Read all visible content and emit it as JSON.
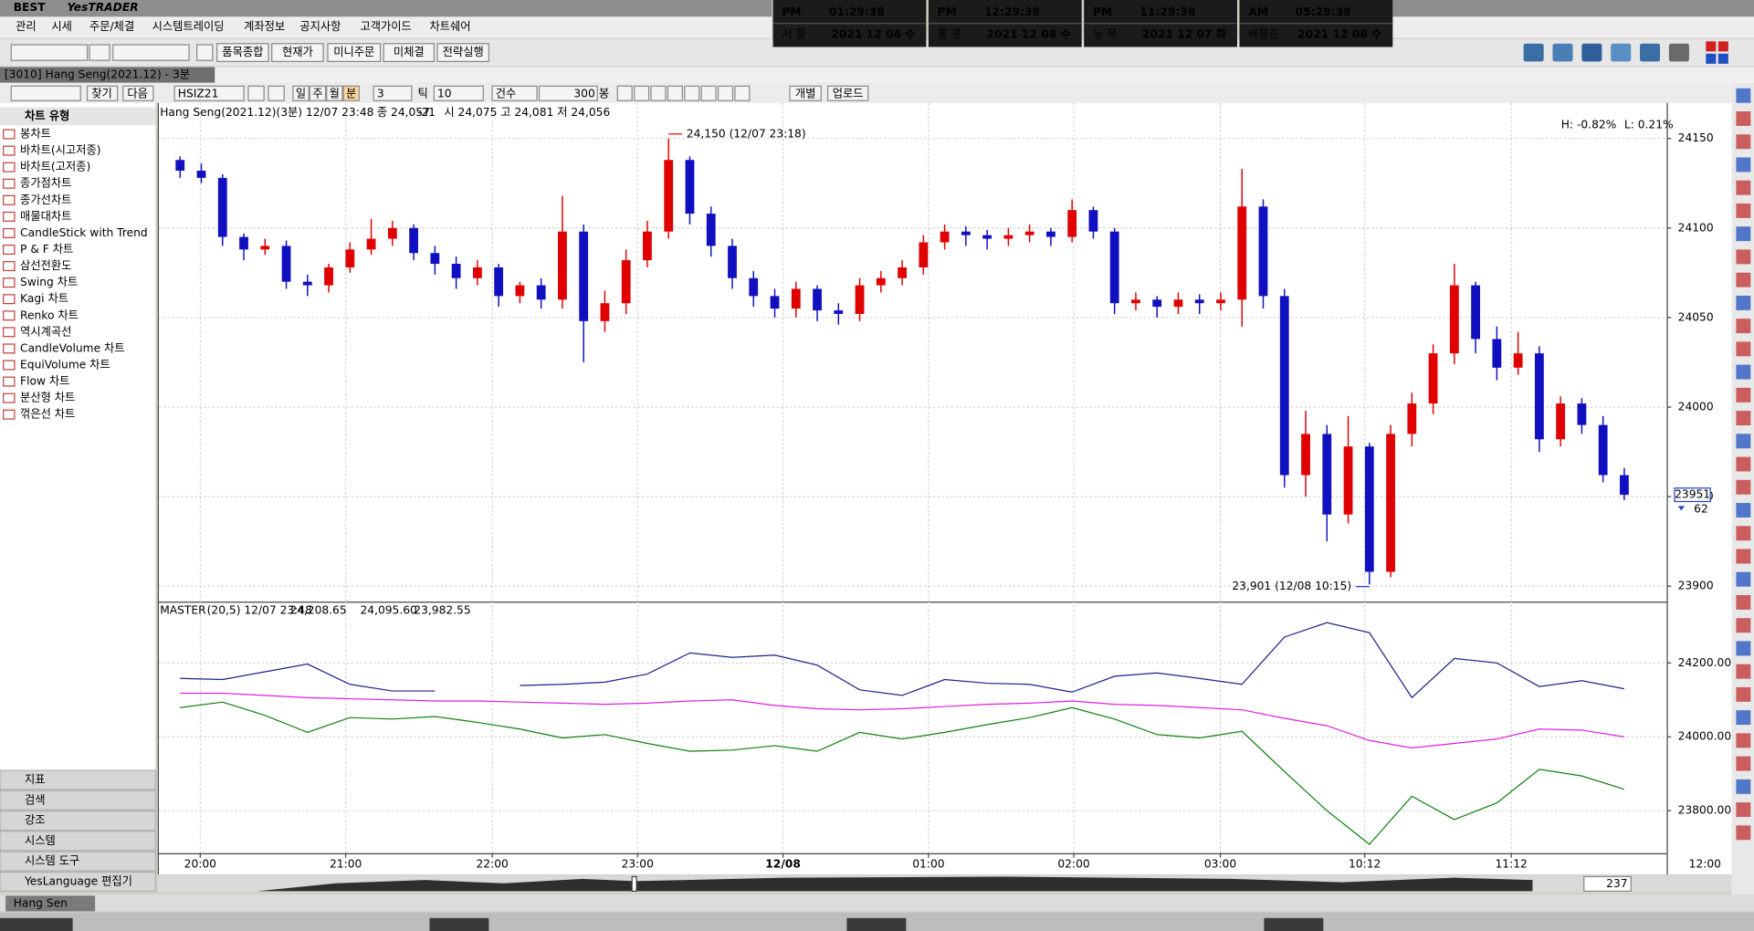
{
  "app": {
    "logo": "BEST",
    "brand": "YesTRADER"
  },
  "menu": [
    "관리",
    "시세",
    "주문/체결",
    "시스템트레이딩",
    "계좌정보",
    "공지사항",
    "고객가이드",
    "차트쉐어"
  ],
  "clocks": [
    {
      "ampm": "PM",
      "time": "01:29:38",
      "city": "서 울",
      "date": "2021 12 08 수"
    },
    {
      "ampm": "PM",
      "time": "12:29:38",
      "city": "홍 콩",
      "date": "2021 12 08 수"
    },
    {
      "ampm": "PM",
      "time": "11:29:38",
      "city": "뉴 욕",
      "date": "2021 12 07 화"
    },
    {
      "ampm": "AM",
      "time": "05:29:38",
      "city": "베를린",
      "date": "2021 12 08 수"
    }
  ],
  "toolbar": {
    "buttons": [
      "품목종합",
      "현재가",
      "미니주문",
      "미체결",
      "전략실행"
    ]
  },
  "window": {
    "title": "[3010] Hang Seng(2021.12) - 3분"
  },
  "chart_toolbar": {
    "find": "찾기",
    "next": "다음",
    "symbol": "HSIZ21",
    "periods": [
      "일",
      "주",
      "월",
      "분"
    ],
    "interval": "3",
    "tick": "틱",
    "tick_count": "10",
    "count_label": "건수",
    "count": "300",
    "count_unit": "봉",
    "fixed": "개별",
    "upload": "업로드"
  },
  "sidebar": {
    "header": "차트 유형",
    "items": [
      "봉차트",
      "바차트(시고저종)",
      "바차트(고저종)",
      "종가점차트",
      "종가선차트",
      "매물대차트",
      "CandleStick with Trend",
      "P & F 차트",
      "삼선전환도",
      "Swing 차트",
      "Kagi 차트",
      "Renko 차트",
      "역시계곡선",
      "CandleVolume 차트",
      "EquiVolume 차트",
      "Flow 차트",
      "분산형 차트",
      "꺾은선 차트"
    ],
    "sections": [
      "지표",
      "검색",
      "강조",
      "시스템",
      "시스템 도구",
      "YesLanguage 편집기"
    ]
  },
  "chart_data": [
    {
      "type": "candlestick",
      "title": "Hang Seng(2021.12)(3분) 12/07 23:48",
      "info": [
        "종 24,057",
        "-21",
        "시 24,075 고 24,081 저 24,056"
      ],
      "annotations": {
        "high": "24,150 (12/07 23:18)",
        "low": "23,901 (12/08 10:15)",
        "h_pct": "H: -0.82%",
        "l_pct": "L: 0.21%"
      },
      "last_price": 23951,
      "last_count": 62,
      "up_color": "#e00000",
      "down_color": "#1010c0",
      "xlim": [
        -1,
        70
      ],
      "xticks": [
        {
          "value": 0.95,
          "label": "20:00"
        },
        {
          "value": 7.8,
          "label": "21:00"
        },
        {
          "value": 14.7,
          "label": "22:00"
        },
        {
          "value": 21.54,
          "label": "23:00"
        },
        {
          "value": 28.39,
          "label": "12/08"
        },
        {
          "value": 35.24,
          "label": "01:00"
        },
        {
          "value": 42.08,
          "label": "02:00"
        },
        {
          "value": 48.98,
          "label": "03:00"
        },
        {
          "value": 55.78,
          "label": "10:12"
        },
        {
          "value": 62.68,
          "label": "11:12"
        },
        {
          "value": 71.8,
          "label": "12:00"
        }
      ],
      "ylim": [
        23892,
        24168
      ],
      "yticks": [
        23900,
        23950,
        24000,
        24050,
        24100,
        24150
      ],
      "grid": true,
      "open": [
        24138,
        24132,
        24128,
        24095,
        24088,
        24090,
        24070,
        24068,
        24078,
        24088,
        24094,
        24100,
        24086,
        24080,
        24072,
        24078,
        24062,
        24068,
        24060,
        24098,
        24048,
        24058,
        24082,
        24098,
        24138,
        24108,
        24090,
        24072,
        24062,
        24055,
        24066,
        24054,
        24052,
        24068,
        24072,
        24078,
        24092,
        24098,
        24096,
        24094,
        24096,
        24098,
        24095,
        24110,
        24098,
        24058,
        24060,
        24056,
        24060,
        24058,
        24060,
        24112,
        24062,
        23962,
        23985,
        23940,
        23978,
        23908,
        23985,
        24002,
        24030,
        24068,
        24038,
        24022,
        24030,
        23982,
        24002,
        23990,
        23962
      ],
      "high": [
        24140,
        24136,
        24130,
        24097,
        24094,
        24093,
        24074,
        24080,
        24092,
        24105,
        24104,
        24102,
        24090,
        24084,
        24082,
        24080,
        24070,
        24072,
        24118,
        24102,
        24065,
        24088,
        24104,
        24150,
        24140,
        24112,
        24094,
        24076,
        24066,
        24070,
        24068,
        24058,
        24072,
        24076,
        24082,
        24096,
        24102,
        24101,
        24099,
        24100,
        24102,
        24100,
        24116,
        24112,
        24100,
        24064,
        24062,
        24064,
        24063,
        24064,
        24133,
        24116,
        24066,
        23998,
        23990,
        23995,
        23980,
        23990,
        24008,
        24035,
        24080,
        24070,
        24045,
        24042,
        24034,
        24006,
        24005,
        23995,
        23966
      ],
      "low": [
        24128,
        24125,
        24090,
        24082,
        24085,
        24066,
        24062,
        24064,
        24075,
        24085,
        24090,
        24082,
        24074,
        24066,
        24068,
        24056,
        24058,
        24055,
        24055,
        24025,
        24042,
        24052,
        24078,
        24094,
        24102,
        24084,
        24066,
        24056,
        24050,
        24050,
        24048,
        24046,
        24048,
        24064,
        24068,
        24074,
        24088,
        24090,
        24088,
        24090,
        24092,
        24090,
        24092,
        24094,
        24052,
        24054,
        24050,
        24052,
        24052,
        24054,
        24045,
        24055,
        23955,
        23950,
        23925,
        23935,
        23901,
        23905,
        23978,
        23996,
        24024,
        24030,
        24015,
        24018,
        23975,
        23978,
        23985,
        23958,
        23948
      ],
      "close": [
        24132,
        24128,
        24095,
        24088,
        24090,
        24070,
        24068,
        24078,
        24088,
        24094,
        24100,
        24086,
        24080,
        24072,
        24078,
        24062,
        24068,
        24060,
        24098,
        24048,
        24058,
        24082,
        24098,
        24138,
        24108,
        24090,
        24072,
        24062,
        24055,
        24066,
        24054,
        24052,
        24068,
        24072,
        24078,
        24092,
        24098,
        24096,
        24094,
        24096,
        24098,
        24095,
        24110,
        24098,
        24058,
        24060,
        24056,
        24060,
        24058,
        24060,
        24112,
        24062,
        23962,
        23985,
        23940,
        23978,
        23908,
        23985,
        24002,
        24030,
        24068,
        24038,
        24022,
        24030,
        23982,
        24002,
        23990,
        23962,
        23951
      ]
    },
    {
      "type": "line",
      "title": "MASTER",
      "params": "(20,5) 12/07 23:48",
      "xlim": [
        -1,
        70
      ],
      "ylim": [
        23688,
        24360
      ],
      "yticks": [
        {
          "value": 23800,
          "label": "23800.00"
        },
        {
          "value": 24000,
          "label": "24000.00"
        },
        {
          "value": 24200,
          "label": "24200.00"
        }
      ],
      "grid": true,
      "x": [
        0,
        2,
        4,
        6,
        8,
        10,
        12,
        14,
        16,
        18,
        20,
        22,
        24,
        26,
        28,
        30,
        32,
        34,
        36,
        38,
        40,
        42,
        44,
        46,
        48,
        50,
        52,
        54,
        56,
        58,
        60,
        62,
        64,
        66,
        68
      ],
      "series": [
        {
          "color": "#20208a",
          "value_label": "24,208.65",
          "values": [
            24158,
            24155,
            24176,
            24197,
            24142,
            24124,
            24124,
            null,
            24139,
            24142,
            24148,
            24170,
            24227,
            24215,
            24221,
            24194,
            24127,
            24112,
            24155,
            24145,
            24142,
            24121,
            24164,
            24173,
            24158,
            24142,
            24270,
            24309,
            24282,
            24106,
            24212,
            24200,
            24136,
            24152,
            24130
          ]
        },
        {
          "color": "#e020e0",
          "value_label": "24,095.60",
          "values": [
            24118,
            24118,
            24112,
            24106,
            24103,
            24100,
            24097,
            24097,
            24094,
            24091,
            24088,
            24091,
            24097,
            24100,
            24085,
            24076,
            24073,
            24076,
            24082,
            24088,
            24091,
            24097,
            24088,
            24085,
            24079,
            24073,
            24050,
            24030,
            23990,
            23970,
            23982,
            23994,
            24021,
            24018,
            24000
          ]
        },
        {
          "color": "#108010",
          "value_label": "23,982.55",
          "values": [
            24079,
            24094,
            24058,
            24012,
            24052,
            24048,
            24055,
            24039,
            24021,
            23997,
            24006,
            23982,
            23961,
            23964,
            23976,
            23961,
            24012,
            23994,
            24012,
            24033,
            24052,
            24079,
            24048,
            24006,
            23997,
            24015,
            23906,
            23800,
            23709,
            23839,
            23776,
            23821,
            23912,
            23894,
            23858
          ]
        }
      ]
    }
  ],
  "scroll": {
    "count": "237"
  },
  "status_tab": "Hang Sen"
}
